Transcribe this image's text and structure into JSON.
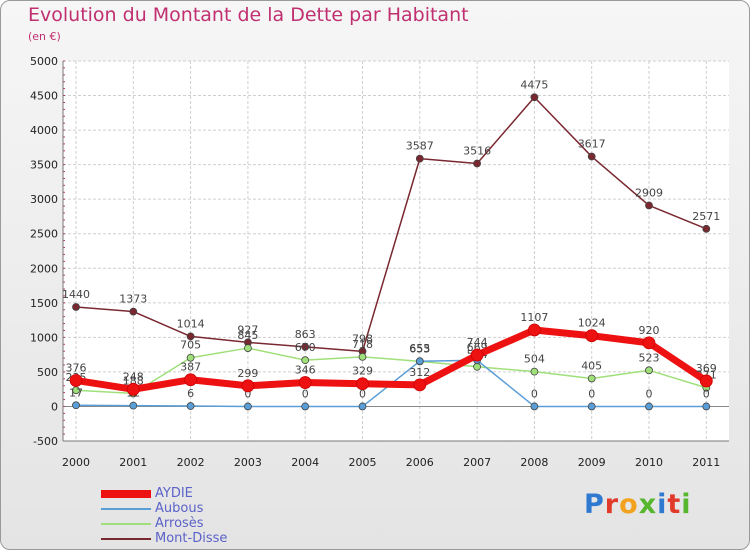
{
  "title": "Evolution du Montant de la Dette par Habitant",
  "subtitle": "(en €)",
  "logo": {
    "text": "Proxiti",
    "colors": [
      "#2f7ad0",
      "#e23a2a",
      "#f2a21c",
      "#56b72e",
      "#2f7ad0",
      "#e23a2a",
      "#56b72e"
    ]
  },
  "chart_data": {
    "type": "line",
    "x": [
      "2000",
      "2001",
      "2002",
      "2003",
      "2004",
      "2005",
      "2006",
      "2007",
      "2008",
      "2009",
      "2010",
      "2011"
    ],
    "ylim": [
      -500,
      5000
    ],
    "yticks": [
      -500,
      0,
      500,
      1000,
      1500,
      2000,
      2500,
      3000,
      3500,
      4000,
      4500,
      5000
    ],
    "grid": true,
    "legend_position": "bottom-left",
    "series": [
      {
        "name": "AYDIE",
        "color": "#ee1111",
        "values": [
          376,
          248,
          387,
          299,
          346,
          329,
          312,
          744,
          1107,
          1024,
          920,
          369
        ]
      },
      {
        "name": "Aubous",
        "color": "#5a9ed8",
        "values": [
          17,
          12,
          6,
          0,
          0,
          0,
          655,
          669,
          0,
          0,
          0,
          0
        ]
      },
      {
        "name": "Arrosès",
        "color": "#9fe07a",
        "values": [
          235,
          188,
          705,
          845,
          670,
          718,
          653,
          574,
          504,
          405,
          523,
          271
        ]
      },
      {
        "name": "Mont-Disse",
        "color": "#7a2830",
        "values": [
          1440,
          1373,
          1014,
          927,
          863,
          798,
          3587,
          3516,
          4475,
          3617,
          2909,
          2571
        ]
      }
    ]
  }
}
